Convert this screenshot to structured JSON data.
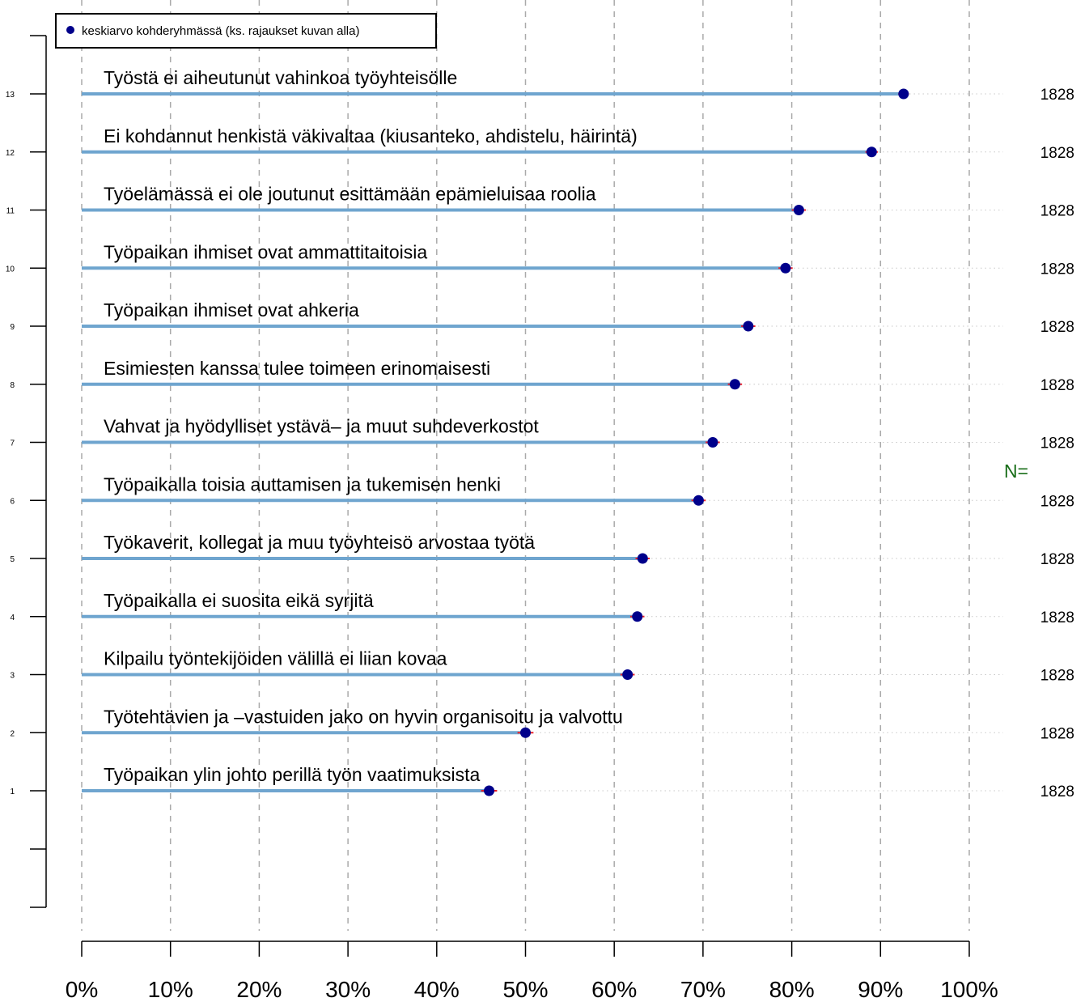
{
  "chart_data": {
    "type": "dot",
    "legend": {
      "label": "keskiarvo kohderyhmässä (ks. rajaukset kuvan alla)",
      "placement": "top-left"
    },
    "xlim": [
      0,
      100
    ],
    "xticks": [
      "0%",
      "10%",
      "20%",
      "30%",
      "40%",
      "50%",
      "60%",
      "70%",
      "80%",
      "90%",
      "100%"
    ],
    "grid_vertical": true,
    "n_label": "N=",
    "colors": {
      "bar": "#6fa5cf",
      "point": "#00008b",
      "error": "#e8202a",
      "n_label": "#1a6e1a",
      "grid": "#aaaaaa"
    },
    "items": [
      {
        "index": "1",
        "label": "Työpaikan ylin johto perillä työn vaatimuksista",
        "value": 45.9,
        "ci": [
          45.0,
          46.8
        ],
        "n": "1828"
      },
      {
        "index": "2",
        "label": "Työtehtävien ja –vastuiden jako on hyvin organisoitu ja valvottu",
        "value": 50.0,
        "ci": [
          49.1,
          50.9
        ],
        "n": "1828"
      },
      {
        "index": "3",
        "label": "Kilpailu työntekijöiden välillä ei liian kovaa",
        "value": 61.5,
        "ci": [
          60.7,
          62.3
        ],
        "n": "1828"
      },
      {
        "index": "4",
        "label": "Työpaikalla ei suosita eikä syrjitä",
        "value": 62.6,
        "ci": [
          61.8,
          63.4
        ],
        "n": "1828"
      },
      {
        "index": "5",
        "label": "Työkaverit, kollegat ja muu työyhteisö arvostaa työtä",
        "value": 63.2,
        "ci": [
          62.4,
          64.0
        ],
        "n": "1828"
      },
      {
        "index": "6",
        "label": "Työpaikalla toisia auttamisen ja tukemisen henki",
        "value": 69.5,
        "ci": [
          68.7,
          70.3
        ],
        "n": "1828"
      },
      {
        "index": "7",
        "label": "Vahvat ja hyödylliset ystävä– ja muut suhdeverkostot",
        "value": 71.1,
        "ci": [
          70.3,
          71.9
        ],
        "n": "1828"
      },
      {
        "index": "8",
        "label": "Esimiesten kanssa tulee toimeen erinomaisesti",
        "value": 73.6,
        "ci": [
          72.8,
          74.4
        ],
        "n": "1828"
      },
      {
        "index": "9",
        "label": "Työpaikan ihmiset ovat ahkeria",
        "value": 75.1,
        "ci": [
          74.3,
          75.9
        ],
        "n": "1828"
      },
      {
        "index": "10",
        "label": "Työpaikan ihmiset ovat ammattitaitoisia",
        "value": 79.3,
        "ci": [
          78.5,
          80.1
        ],
        "n": "1828"
      },
      {
        "index": "11",
        "label": "Työelämässä ei ole joutunut esittämään epämieluisaa roolia",
        "value": 80.8,
        "ci": [
          80.0,
          81.6
        ],
        "n": "1828"
      },
      {
        "index": "12",
        "label": "Ei kohdannut henkistä väkivaltaa (kiusanteko, ahdistelu, häirintä)",
        "value": 89.0,
        "ci": [
          88.3,
          89.7
        ],
        "n": "1828"
      },
      {
        "index": "13",
        "label": "Työstä ei aiheutunut vahinkoa työyhteisölle",
        "value": 92.6,
        "ci": [
          92.0,
          93.2
        ],
        "n": "1828"
      }
    ]
  }
}
